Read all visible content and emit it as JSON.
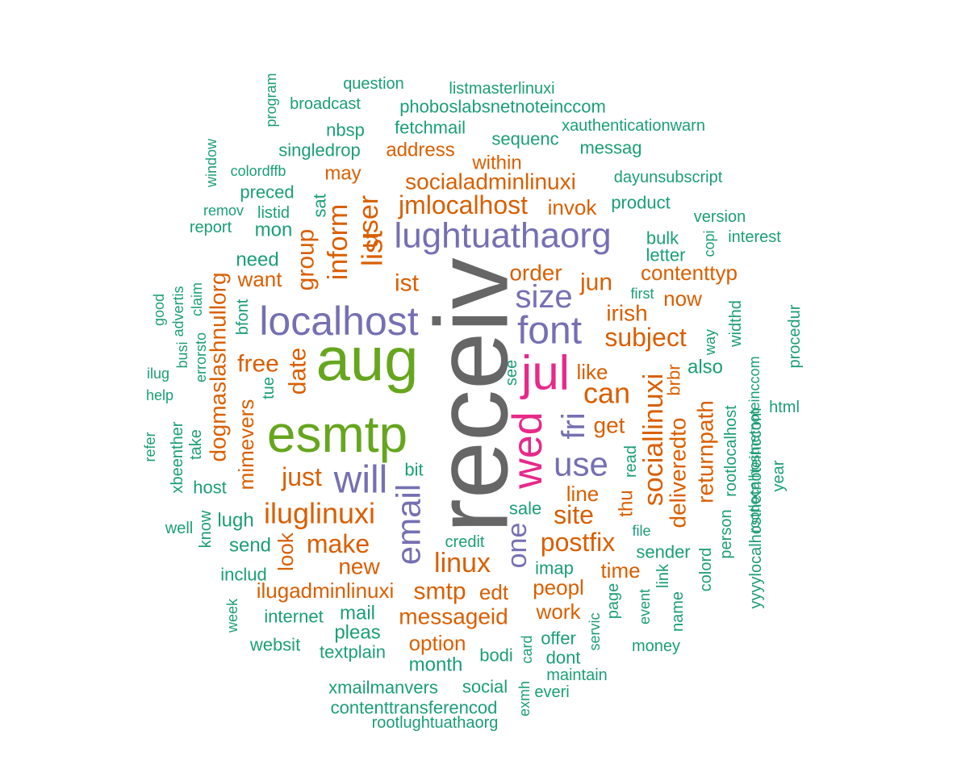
{
  "chart_data": {
    "type": "wordcloud",
    "color_scale": {
      "tier1": "#1b9e77",
      "tier2": "#d95f02",
      "tier3": "#7570b3",
      "tier4": "#e7298a",
      "tier5": "#66a61e",
      "tier6": "#666666"
    },
    "words": [
      {
        "text": "receiv",
        "tier": 6,
        "vertical": true
      },
      {
        "text": "aug",
        "tier": 5,
        "vertical": false
      },
      {
        "text": "esmtp",
        "tier": 5,
        "vertical": false
      },
      {
        "text": "jul",
        "tier": 4,
        "vertical": false
      },
      {
        "text": "wed",
        "tier": 4,
        "vertical": true
      },
      {
        "text": "localhost",
        "tier": 3,
        "vertical": false
      },
      {
        "text": "lughtuathaorg",
        "tier": 3,
        "vertical": false
      },
      {
        "text": "font",
        "tier": 3,
        "vertical": false
      },
      {
        "text": "will",
        "tier": 3,
        "vertical": false
      },
      {
        "text": "email",
        "tier": 3,
        "vertical": true
      },
      {
        "text": "use",
        "tier": 3,
        "vertical": false
      },
      {
        "text": "size",
        "tier": 3,
        "vertical": false
      },
      {
        "text": "fri",
        "tier": 3,
        "vertical": true
      },
      {
        "text": "one",
        "tier": 3,
        "vertical": true
      },
      {
        "text": "list",
        "tier": 2,
        "vertical": true
      },
      {
        "text": "user",
        "tier": 2,
        "vertical": true
      },
      {
        "text": "inform",
        "tier": 2,
        "vertical": true
      },
      {
        "text": "group",
        "tier": 2,
        "vertical": true
      },
      {
        "text": "jmlocalhost",
        "tier": 2,
        "vertical": false
      },
      {
        "text": "socialadminlinuxi",
        "tier": 2,
        "vertical": false
      },
      {
        "text": "address",
        "tier": 2,
        "vertical": false
      },
      {
        "text": "within",
        "tier": 2,
        "vertical": false
      },
      {
        "text": "may",
        "tier": 2,
        "vertical": false
      },
      {
        "text": "invok",
        "tier": 2,
        "vertical": false
      },
      {
        "text": "order",
        "tier": 2,
        "vertical": false
      },
      {
        "text": "jun",
        "tier": 2,
        "vertical": false
      },
      {
        "text": "ist",
        "tier": 2,
        "vertical": false
      },
      {
        "text": "irish",
        "tier": 2,
        "vertical": false
      },
      {
        "text": "subject",
        "tier": 2,
        "vertical": false
      },
      {
        "text": "can",
        "tier": 2,
        "vertical": false
      },
      {
        "text": "like",
        "tier": 2,
        "vertical": false
      },
      {
        "text": "get",
        "tier": 2,
        "vertical": false
      },
      {
        "text": "contenttyp",
        "tier": 2,
        "vertical": false
      },
      {
        "text": "now",
        "tier": 2,
        "vertical": false
      },
      {
        "text": "want",
        "tier": 2,
        "vertical": false
      },
      {
        "text": "free",
        "tier": 2,
        "vertical": false
      },
      {
        "text": "date",
        "tier": 2,
        "vertical": true
      },
      {
        "text": "dogmaslashnullorg",
        "tier": 2,
        "vertical": true
      },
      {
        "text": "mimevers",
        "tier": 2,
        "vertical": true
      },
      {
        "text": "just",
        "tier": 2,
        "vertical": false
      },
      {
        "text": "iluglinuxi",
        "tier": 2,
        "vertical": false
      },
      {
        "text": "make",
        "tier": 2,
        "vertical": false
      },
      {
        "text": "new",
        "tier": 2,
        "vertical": false
      },
      {
        "text": "look",
        "tier": 2,
        "vertical": true
      },
      {
        "text": "linux",
        "tier": 2,
        "vertical": false
      },
      {
        "text": "site",
        "tier": 2,
        "vertical": false
      },
      {
        "text": "line",
        "tier": 2,
        "vertical": false
      },
      {
        "text": "postfix",
        "tier": 2,
        "vertical": false
      },
      {
        "text": "sociallinuxi",
        "tier": 2,
        "vertical": true
      },
      {
        "text": "deliveredto",
        "tier": 2,
        "vertical": true
      },
      {
        "text": "returnpath",
        "tier": 2,
        "vertical": true
      },
      {
        "text": "brbr",
        "tier": 2,
        "vertical": true
      },
      {
        "text": "thu",
        "tier": 2,
        "vertical": true
      },
      {
        "text": "time",
        "tier": 2,
        "vertical": false
      },
      {
        "text": "peopl",
        "tier": 2,
        "vertical": false
      },
      {
        "text": "ilugadminlinuxi",
        "tier": 2,
        "vertical": false
      },
      {
        "text": "smtp",
        "tier": 2,
        "vertical": false
      },
      {
        "text": "edt",
        "tier": 2,
        "vertical": false
      },
      {
        "text": "messageid",
        "tier": 2,
        "vertical": false
      },
      {
        "text": "work",
        "tier": 2,
        "vertical": false
      },
      {
        "text": "option",
        "tier": 2,
        "vertical": false
      },
      {
        "text": "question",
        "tier": 1,
        "vertical": false
      },
      {
        "text": "listmasterlinuxi",
        "tier": 1,
        "vertical": false
      },
      {
        "text": "program",
        "tier": 1,
        "vertical": true
      },
      {
        "text": "broadcast",
        "tier": 1,
        "vertical": false
      },
      {
        "text": "phoboslabsnetnoteinccom",
        "tier": 1,
        "vertical": false
      },
      {
        "text": "xauthenticationwarn",
        "tier": 1,
        "vertical": false
      },
      {
        "text": "nbsp",
        "tier": 1,
        "vertical": false
      },
      {
        "text": "fetchmail",
        "tier": 1,
        "vertical": false
      },
      {
        "text": "sequenc",
        "tier": 1,
        "vertical": false
      },
      {
        "text": "messag",
        "tier": 1,
        "vertical": false
      },
      {
        "text": "window",
        "tier": 1,
        "vertical": true
      },
      {
        "text": "singledrop",
        "tier": 1,
        "vertical": false
      },
      {
        "text": "colordffb",
        "tier": 1,
        "vertical": false
      },
      {
        "text": "dayunsubscript",
        "tier": 1,
        "vertical": false
      },
      {
        "text": "preced",
        "tier": 1,
        "vertical": false
      },
      {
        "text": "product",
        "tier": 1,
        "vertical": false
      },
      {
        "text": "remov",
        "tier": 1,
        "vertical": false
      },
      {
        "text": "listid",
        "tier": 1,
        "vertical": false
      },
      {
        "text": "sat",
        "tier": 1,
        "vertical": true
      },
      {
        "text": "version",
        "tier": 1,
        "vertical": false
      },
      {
        "text": "report",
        "tier": 1,
        "vertical": false
      },
      {
        "text": "mon",
        "tier": 1,
        "vertical": false
      },
      {
        "text": "bulk",
        "tier": 1,
        "vertical": false
      },
      {
        "text": "copi",
        "tier": 1,
        "vertical": true
      },
      {
        "text": "interest",
        "tier": 1,
        "vertical": false
      },
      {
        "text": "letter",
        "tier": 1,
        "vertical": false
      },
      {
        "text": "need",
        "tier": 1,
        "vertical": false
      },
      {
        "text": "good",
        "tier": 1,
        "vertical": true
      },
      {
        "text": "advertis",
        "tier": 1,
        "vertical": true
      },
      {
        "text": "claim",
        "tier": 1,
        "vertical": true
      },
      {
        "text": "first",
        "tier": 1,
        "vertical": false
      },
      {
        "text": "bfont",
        "tier": 1,
        "vertical": true
      },
      {
        "text": "widthd",
        "tier": 1,
        "vertical": true
      },
      {
        "text": "procedur",
        "tier": 1,
        "vertical": true
      },
      {
        "text": "busi",
        "tier": 1,
        "vertical": true
      },
      {
        "text": "errorsto",
        "tier": 1,
        "vertical": true
      },
      {
        "text": "way",
        "tier": 1,
        "vertical": true
      },
      {
        "text": "also",
        "tier": 1,
        "vertical": false
      },
      {
        "text": "ilug",
        "tier": 1,
        "vertical": false
      },
      {
        "text": "tue",
        "tier": 1,
        "vertical": true
      },
      {
        "text": "see",
        "tier": 1,
        "vertical": true
      },
      {
        "text": "help",
        "tier": 1,
        "vertical": false
      },
      {
        "text": "html",
        "tier": 1,
        "vertical": false
      },
      {
        "text": "xbeenther",
        "tier": 1,
        "vertical": true
      },
      {
        "text": "refer",
        "tier": 1,
        "vertical": true
      },
      {
        "text": "take",
        "tier": 1,
        "vertical": true
      },
      {
        "text": "bit",
        "tier": 1,
        "vertical": false
      },
      {
        "text": "read",
        "tier": 1,
        "vertical": true
      },
      {
        "text": "rootlocalhost",
        "tier": 1,
        "vertical": true
      },
      {
        "text": "year",
        "tier": 1,
        "vertical": true
      },
      {
        "text": "host",
        "tier": 1,
        "vertical": false
      },
      {
        "text": "lugh",
        "tier": 1,
        "vertical": false
      },
      {
        "text": "sale",
        "tier": 1,
        "vertical": false
      },
      {
        "text": "well",
        "tier": 1,
        "vertical": false
      },
      {
        "text": "know",
        "tier": 1,
        "vertical": true
      },
      {
        "text": "send",
        "tier": 1,
        "vertical": false
      },
      {
        "text": "credit",
        "tier": 1,
        "vertical": false
      },
      {
        "text": "file",
        "tier": 1,
        "vertical": false
      },
      {
        "text": "rootlocalhostnetnoteinccom",
        "tier": 1,
        "vertical": true
      },
      {
        "text": "yyyylocalhostnetnoteinccom",
        "tier": 1,
        "vertical": true
      },
      {
        "text": "sender",
        "tier": 1,
        "vertical": false
      },
      {
        "text": "person",
        "tier": 1,
        "vertical": true
      },
      {
        "text": "imap",
        "tier": 1,
        "vertical": false
      },
      {
        "text": "colord",
        "tier": 1,
        "vertical": true
      },
      {
        "text": "includ",
        "tier": 1,
        "vertical": false
      },
      {
        "text": "link",
        "tier": 1,
        "vertical": true
      },
      {
        "text": "week",
        "tier": 1,
        "vertical": true
      },
      {
        "text": "page",
        "tier": 1,
        "vertical": true
      },
      {
        "text": "event",
        "tier": 1,
        "vertical": true
      },
      {
        "text": "internet",
        "tier": 1,
        "vertical": false
      },
      {
        "text": "mail",
        "tier": 1,
        "vertical": false
      },
      {
        "text": "name",
        "tier": 1,
        "vertical": true
      },
      {
        "text": "pleas",
        "tier": 1,
        "vertical": false
      },
      {
        "text": "servic",
        "tier": 1,
        "vertical": true
      },
      {
        "text": "offer",
        "tier": 1,
        "vertical": false
      },
      {
        "text": "websit",
        "tier": 1,
        "vertical": false
      },
      {
        "text": "textplain",
        "tier": 1,
        "vertical": false
      },
      {
        "text": "dont",
        "tier": 1,
        "vertical": false
      },
      {
        "text": "money",
        "tier": 1,
        "vertical": false
      },
      {
        "text": "bodi",
        "tier": 1,
        "vertical": false
      },
      {
        "text": "card",
        "tier": 1,
        "vertical": true
      },
      {
        "text": "month",
        "tier": 1,
        "vertical": false
      },
      {
        "text": "maintain",
        "tier": 1,
        "vertical": false
      },
      {
        "text": "xmailmanvers",
        "tier": 1,
        "vertical": false
      },
      {
        "text": "social",
        "tier": 1,
        "vertical": false
      },
      {
        "text": "everi",
        "tier": 1,
        "vertical": false
      },
      {
        "text": "exmh",
        "tier": 1,
        "vertical": true
      },
      {
        "text": "contenttransferencod",
        "tier": 1,
        "vertical": false
      },
      {
        "text": "rootlughtuathaorg",
        "tier": 1,
        "vertical": false
      }
    ]
  }
}
